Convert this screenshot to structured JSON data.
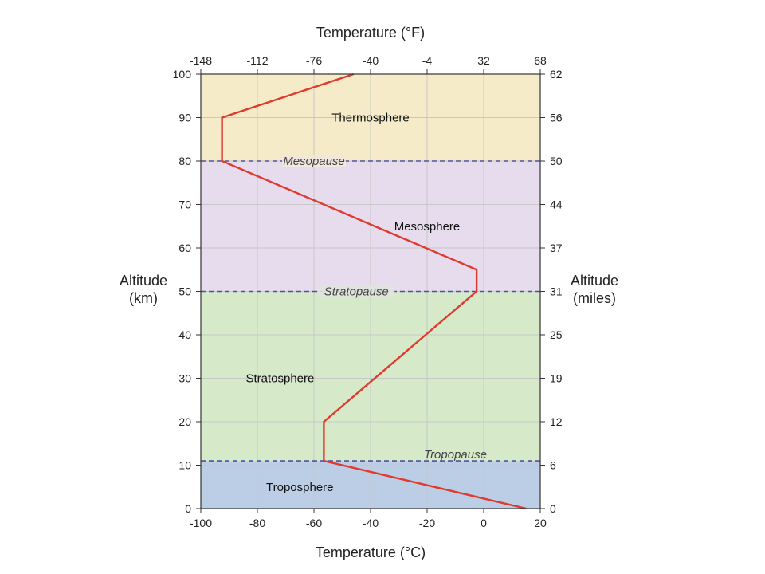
{
  "chart_data": {
    "type": "line",
    "xlabel_bottom": "Temperature (°C)",
    "xlabel_top": "Temperature (°F)",
    "ylabel_left": [
      "Altitude",
      "(km)"
    ],
    "ylabel_right": [
      "Altitude",
      "(miles)"
    ],
    "xlim": [
      -100,
      20
    ],
    "ylim": [
      0,
      100
    ],
    "x_ticks_bottom": [
      "-100",
      "-80",
      "-60",
      "-40",
      "-20",
      "0",
      "20"
    ],
    "x_ticks_top": [
      "-148",
      "-112",
      "-76",
      "-40",
      "-4",
      "32",
      "68"
    ],
    "y_ticks_left": [
      "0",
      "10",
      "20",
      "30",
      "40",
      "50",
      "60",
      "70",
      "80",
      "90",
      "100"
    ],
    "y_ticks_right": [
      "0",
      "6",
      "12",
      "19",
      "25",
      "31",
      "37",
      "44",
      "50",
      "56",
      "62"
    ],
    "grid": true,
    "series": [
      {
        "color": "#e03a2e",
        "points": [
          {
            "x": 15,
            "y": 0
          },
          {
            "x": -56.5,
            "y": 11
          },
          {
            "x": -56.5,
            "y": 20
          },
          {
            "x": -2.5,
            "y": 50
          },
          {
            "x": -2.5,
            "y": 55
          },
          {
            "x": -92.5,
            "y": 80
          },
          {
            "x": -92.5,
            "y": 90
          },
          {
            "x": -46,
            "y": 100
          }
        ]
      }
    ],
    "layers": [
      {
        "name": "Troposphere",
        "from": 0,
        "to": 11,
        "color": "#bccde6",
        "label_x": -65,
        "label_y": 5
      },
      {
        "name": "Stratosphere",
        "from": 11,
        "to": 50,
        "color": "#d6eac9",
        "label_x": -72,
        "label_y": 30
      },
      {
        "name": "Mesosphere",
        "from": 50,
        "to": 80,
        "color": "#e6dced",
        "label_x": -20,
        "label_y": 65
      },
      {
        "name": "Thermosphere",
        "from": 80,
        "to": 100,
        "color": "#f6ebc8",
        "label_x": -40,
        "label_y": 90
      }
    ],
    "boundaries": [
      {
        "name": "Tropopause",
        "y": 11,
        "label_x": -10,
        "label_side": "above"
      },
      {
        "name": "Stratopause",
        "y": 50,
        "label_x": -45,
        "label_side": "center"
      },
      {
        "name": "Mesopause",
        "y": 80,
        "label_x": -60,
        "label_side": "center"
      }
    ],
    "boundary_color": "#5050a0"
  }
}
